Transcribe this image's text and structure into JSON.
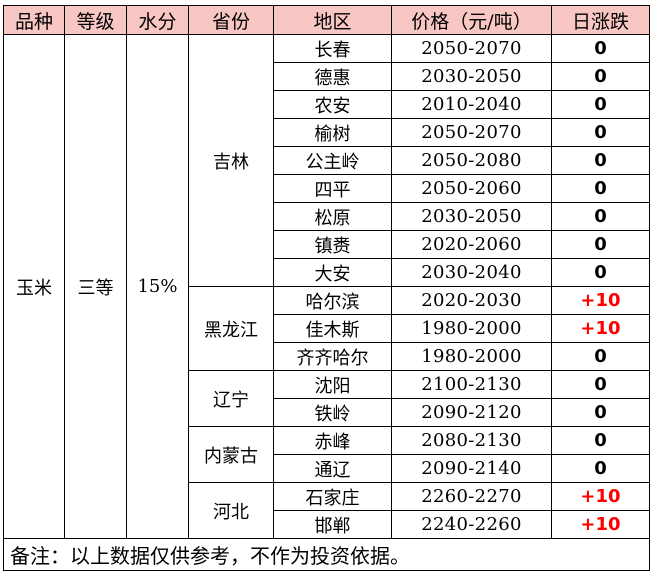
{
  "headers": [
    "品种",
    "等级",
    "水分",
    "省份",
    "地区",
    "价格（元/吨）",
    "日涨跌"
  ],
  "commodity": "玉米",
  "grade": "三等",
  "moisture": "15%",
  "provinces": [
    {
      "name": "吉林",
      "rows": [
        {
          "region": "长春",
          "price": "2050-2070",
          "change": "0"
        },
        {
          "region": "德惠",
          "price": "2030-2050",
          "change": "0"
        },
        {
          "region": "农安",
          "price": "2010-2040",
          "change": "0"
        },
        {
          "region": "榆树",
          "price": "2050-2070",
          "change": "0"
        },
        {
          "region": "公主岭",
          "price": "2050-2080",
          "change": "0"
        },
        {
          "region": "四平",
          "price": "2050-2060",
          "change": "0"
        },
        {
          "region": "松原",
          "price": "2030-2050",
          "change": "0"
        },
        {
          "region": "镇赉",
          "price": "2020-2060",
          "change": "0"
        },
        {
          "region": "大安",
          "price": "2030-2040",
          "change": "0"
        }
      ]
    },
    {
      "name": "黑龙江",
      "rows": [
        {
          "region": "哈尔滨",
          "price": "2020-2030",
          "change": "+10"
        },
        {
          "region": "佳木斯",
          "price": "1980-2000",
          "change": "+10"
        },
        {
          "region": "齐齐哈尔",
          "price": "1980-2000",
          "change": "0"
        }
      ]
    },
    {
      "name": "辽宁",
      "rows": [
        {
          "region": "沈阳",
          "price": "2100-2130",
          "change": "0"
        },
        {
          "region": "铁岭",
          "price": "2090-2120",
          "change": "0"
        }
      ]
    },
    {
      "name": "内蒙古",
      "rows": [
        {
          "region": "赤峰",
          "price": "2080-2130",
          "change": "0"
        },
        {
          "region": "通辽",
          "price": "2090-2140",
          "change": "0"
        }
      ]
    },
    {
      "name": "河北",
      "rows": [
        {
          "region": "石家庄",
          "price": "2260-2270",
          "change": "+10"
        },
        {
          "region": "邯郸",
          "price": "2240-2260",
          "change": "+10"
        }
      ]
    }
  ],
  "note": "备注：以上数据仅供参考，不作为投资依据。",
  "colors": {
    "header_bg": "#f8c6c3",
    "up": "#ff0000",
    "flat": "#000000"
  }
}
